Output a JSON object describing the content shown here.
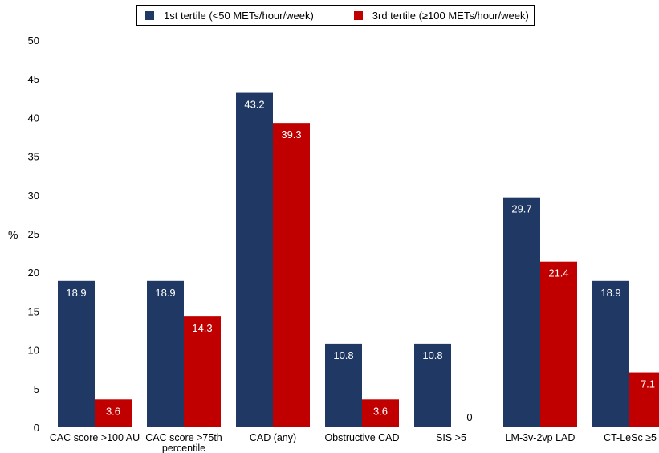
{
  "chart_data": {
    "type": "bar",
    "ylabel": "%",
    "ylim": [
      0,
      50
    ],
    "yticks": [
      "0",
      "5",
      "10",
      "15",
      "20",
      "25",
      "30",
      "35",
      "40",
      "45",
      "50"
    ],
    "grid": false,
    "legend_position": "top",
    "categories": [
      "CAC score >100 AU",
      "CAC score >75th percentile",
      "CAD (any)",
      "Obstructive CAD",
      "SIS >5",
      "LM-3v-2vp LAD",
      "CT-LeSc ≥5"
    ],
    "series": [
      {
        "name": "1st tertile (<50 METs/hour/week)",
        "color": "#1f3864",
        "values": [
          18.9,
          18.9,
          43.2,
          10.8,
          10.8,
          29.7,
          18.9
        ],
        "labels": [
          "18.9",
          "18.9",
          "43.2",
          "10.8",
          "10.8",
          "29.7",
          "18.9"
        ]
      },
      {
        "name": "3rd tertile (≥100 METs/hour/week)",
        "color": "#c00000",
        "values": [
          3.6,
          14.3,
          39.3,
          3.6,
          0,
          21.4,
          7.1
        ],
        "labels": [
          "3.6",
          "14.3",
          "39.3",
          "3.6",
          "0",
          "21.4",
          "7.1"
        ]
      }
    ]
  }
}
